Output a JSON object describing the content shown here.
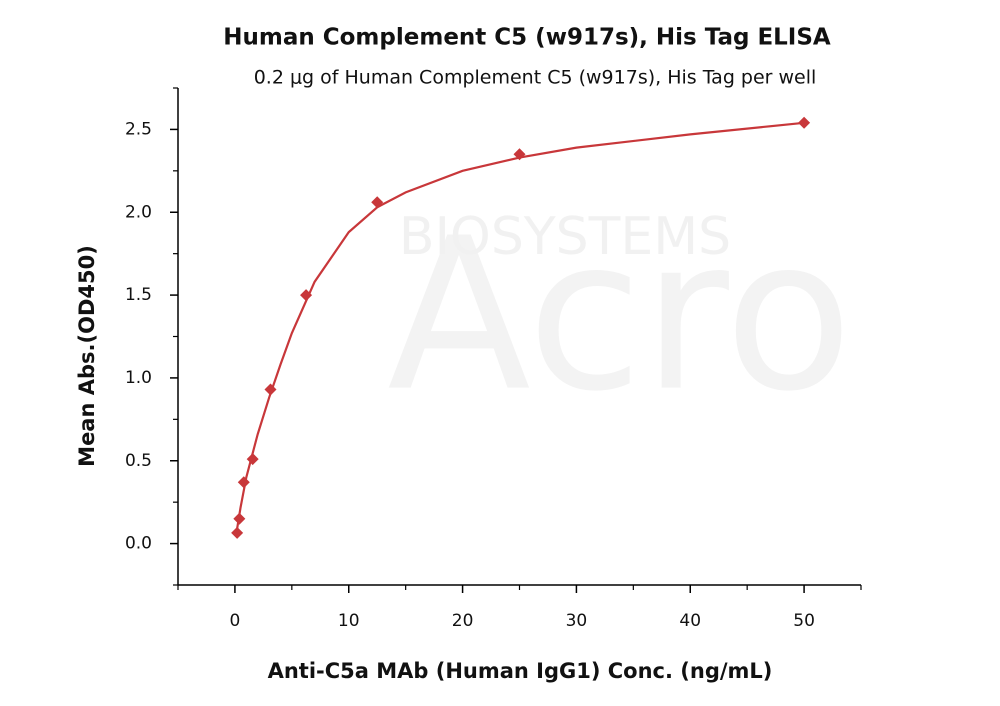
{
  "chart_data": {
    "type": "scatter",
    "title": "Human Complement C5 (w917s), His Tag ELISA",
    "subtitle": "0.2 μg of Human Complement C5 (w917s), His Tag per well",
    "x_label": "Anti-C5a MAb (Human IgG1) Conc. (ng/mL)",
    "y_label": "Mean Abs.(OD450)",
    "watermark": [
      "Acro",
      "BIOSYSTEMS"
    ],
    "xlim": [
      -5,
      55
    ],
    "ylim": [
      -0.25,
      2.75
    ],
    "xticks": [
      0,
      10,
      20,
      30,
      40,
      50
    ],
    "xminorticks": [
      -5,
      5,
      15,
      25,
      35,
      45,
      55
    ],
    "yticks": [
      {
        "value": 0,
        "label": "0.0"
      },
      0.5,
      {
        "value": 1,
        "label": "1.0"
      },
      1.5,
      {
        "value": 2,
        "label": "2.0"
      },
      2.5
    ],
    "yminorticks": [
      -0.25,
      0.25,
      0.75,
      1.25,
      1.75,
      2.25,
      2.75
    ],
    "series": [
      {
        "mode": "markers",
        "marker": "diamond",
        "color": "#c8373a",
        "x": [
          0.195,
          0.39,
          0.78,
          1.56,
          3.125,
          6.25,
          12.5,
          25,
          50
        ],
        "values": [
          0.065,
          0.15,
          0.37,
          0.51,
          0.93,
          1.5,
          2.06,
          2.35,
          2.54
        ]
      },
      {
        "mode": "line",
        "color": "#c8373a",
        "x": [
          0.1,
          0.5,
          1,
          2,
          3,
          4,
          5,
          7,
          10,
          12.5,
          15,
          20,
          25,
          30,
          40,
          50
        ],
        "values": [
          0.05,
          0.22,
          0.4,
          0.66,
          0.88,
          1.08,
          1.27,
          1.58,
          1.88,
          2.03,
          2.12,
          2.25,
          2.33,
          2.39,
          2.47,
          2.54
        ]
      }
    ]
  }
}
